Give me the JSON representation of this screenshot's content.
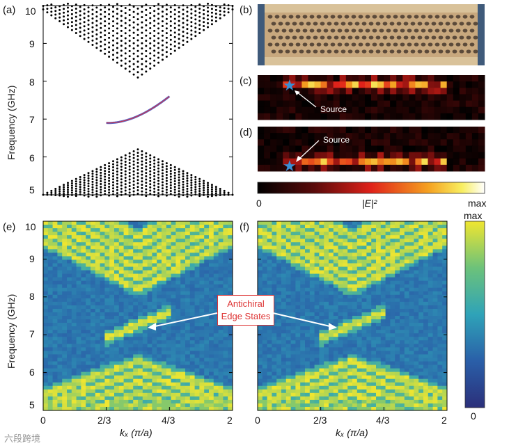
{
  "labels": {
    "a": "(a)",
    "b": "(b)",
    "c": "(c)",
    "d": "(d)",
    "e": "(e)",
    "f": "(f)"
  },
  "ylabel": "Frequency (GHz)",
  "yticks_a": [
    "10",
    "9",
    "8",
    "7",
    "6",
    "5"
  ],
  "yticks_ef": [
    "10",
    "9",
    "8",
    "7",
    "6",
    "5"
  ],
  "xticks": [
    "0",
    "2/3",
    "4/3",
    "2"
  ],
  "xlabel_e": "kₓ (π/a)",
  "xlabel_f": "kₓ (π/a)",
  "source_c": "Source",
  "source_d": "Source",
  "colorbar_top": {
    "min": "0",
    "label": "|E|²",
    "max": "max"
  },
  "colorbar_right": {
    "max": "max",
    "min": "0"
  },
  "callout": {
    "line1": "Antichiral",
    "line2": "Edge States"
  },
  "watermark": "六段跨境",
  "colors": {
    "edge_state_line": "#cc3344",
    "edge_state_overlay": "#5566cc",
    "callout_red": "#dd3333",
    "star": "#3a8fd4"
  }
}
